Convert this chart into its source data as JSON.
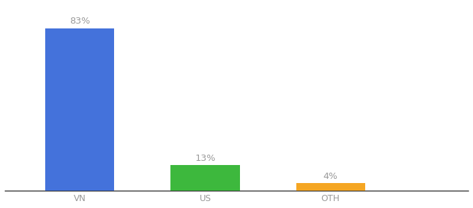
{
  "categories": [
    "VN",
    "US",
    "OTH"
  ],
  "values": [
    83,
    13,
    4
  ],
  "bar_colors": [
    "#4472db",
    "#3db83d",
    "#f5a623"
  ],
  "labels": [
    "83%",
    "13%",
    "4%"
  ],
  "background_color": "#ffffff",
  "ylim": [
    0,
    95
  ],
  "label_fontsize": 9.5,
  "tick_fontsize": 9,
  "label_color": "#999999",
  "bar_width": 0.55,
  "x_positions": [
    0.5,
    1.5,
    2.5
  ],
  "xlim": [
    -0.1,
    3.6
  ]
}
